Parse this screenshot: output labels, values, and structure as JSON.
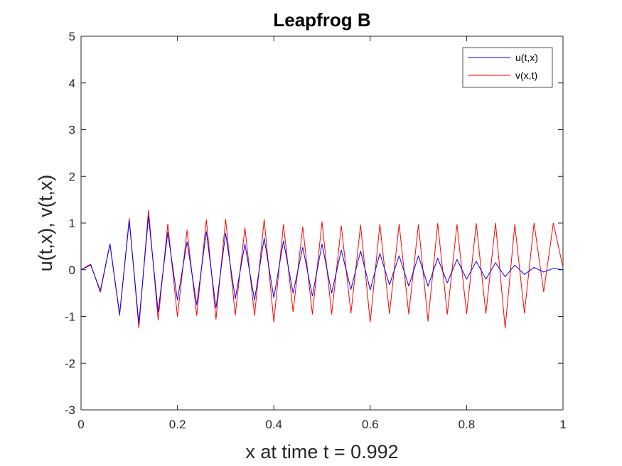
{
  "chart_data": {
    "type": "line",
    "title": "Leapfrog B",
    "xlabel": "x at time t = 0.992",
    "ylabel": "u(t,x), v(t,x)",
    "xlim": [
      0,
      1
    ],
    "ylim": [
      -3,
      5
    ],
    "xticks": [
      0,
      0.2,
      0.4,
      0.6,
      0.8,
      1
    ],
    "xtick_labels": [
      "0",
      "0.2",
      "0.4",
      "0.6",
      "0.8",
      "1"
    ],
    "yticks": [
      -3,
      -2,
      -1,
      0,
      1,
      2,
      3,
      4,
      5
    ],
    "ytick_labels": [
      "-3",
      "-2",
      "-1",
      "0",
      "1",
      "2",
      "3",
      "4",
      "5"
    ],
    "grid": false,
    "legend_position": "top-right",
    "x": [
      0,
      0.02,
      0.04,
      0.06,
      0.08,
      0.1,
      0.12,
      0.14,
      0.16,
      0.18,
      0.2,
      0.22,
      0.24,
      0.26,
      0.28,
      0.3,
      0.32,
      0.34,
      0.36,
      0.38,
      0.4,
      0.42,
      0.44,
      0.46,
      0.48,
      0.5,
      0.52,
      0.54,
      0.56,
      0.58,
      0.6,
      0.62,
      0.64,
      0.66,
      0.68,
      0.7,
      0.72,
      0.74,
      0.76,
      0.78,
      0.8,
      0.82,
      0.84,
      0.86,
      0.88,
      0.9,
      0.92,
      0.94,
      0.96,
      0.98,
      1
    ],
    "series": [
      {
        "name": "u(t,x)",
        "color": "#0000ff",
        "values": [
          0,
          0.1,
          -0.45,
          0.55,
          -0.95,
          1.05,
          -1.15,
          1.15,
          -0.9,
          0.8,
          -0.65,
          0.6,
          -0.75,
          0.82,
          -0.82,
          0.78,
          -0.62,
          0.55,
          -0.65,
          0.68,
          -0.6,
          0.62,
          -0.5,
          0.48,
          -0.56,
          0.55,
          -0.5,
          0.42,
          -0.42,
          0.4,
          -0.43,
          0.35,
          -0.32,
          0.3,
          -0.35,
          0.3,
          -0.35,
          0.25,
          -0.28,
          0.22,
          -0.2,
          0.18,
          -0.2,
          0.15,
          -0.15,
          0.1,
          -0.1,
          0.05,
          -0.05,
          0.03,
          0
        ]
      },
      {
        "name": "v(x,t)",
        "color": "#ff0000",
        "values": [
          0,
          0.12,
          -0.48,
          0.55,
          -0.98,
          1.1,
          -1.25,
          1.28,
          -1.08,
          0.98,
          -1.0,
          0.85,
          -0.98,
          1.07,
          -1.06,
          1.08,
          -0.97,
          0.9,
          -0.98,
          1.08,
          -1.12,
          0.97,
          -0.9,
          0.92,
          -0.95,
          1.03,
          -0.95,
          0.94,
          -0.93,
          0.96,
          -1.12,
          0.97,
          -0.94,
          0.98,
          -0.95,
          0.97,
          -1.1,
          0.99,
          -0.95,
          0.97,
          -0.94,
          0.99,
          -0.94,
          1.0,
          -1.25,
          0.97,
          -0.93,
          1.0,
          -0.47,
          1.0,
          0.05
        ]
      }
    ]
  }
}
